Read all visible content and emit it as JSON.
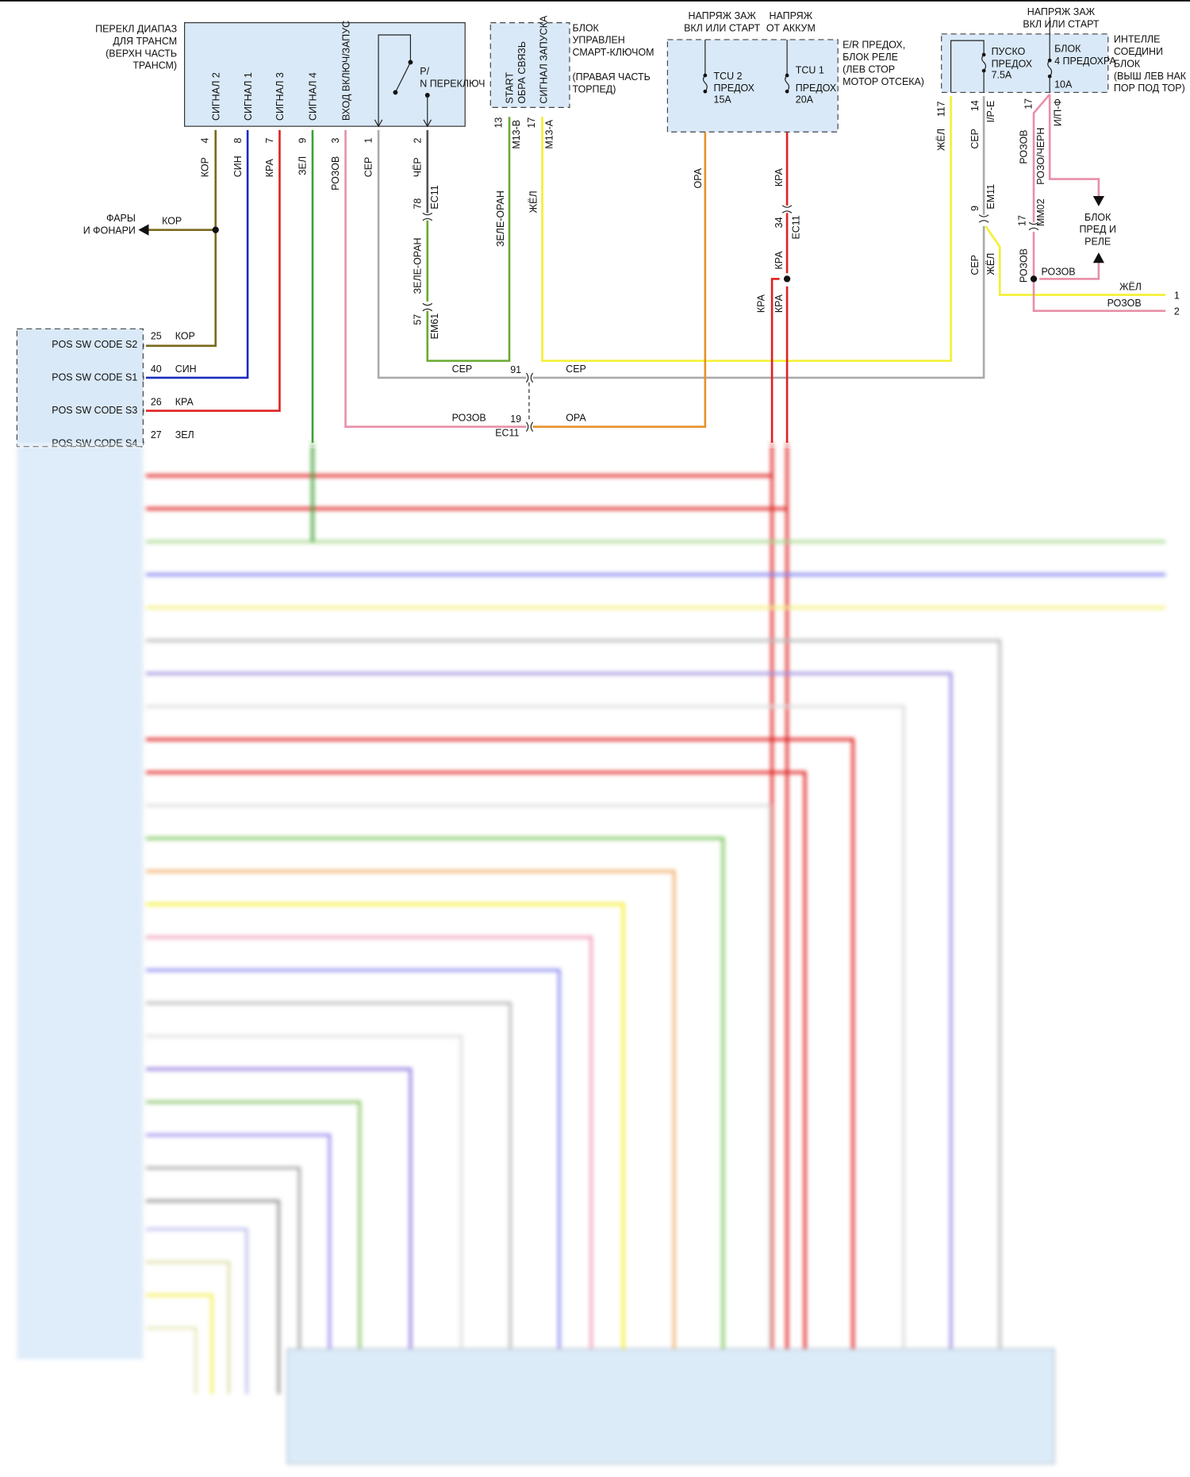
{
  "trans_range_switch": {
    "label": [
      "ПЕРЕКЛ ДИАПАЗ",
      "ДЛЯ ТРАНСМ",
      "(ВЕРХН ЧАСТЬ",
      "ТРАНСМ)"
    ],
    "signals": [
      "СИГНАЛ 2",
      "СИГНАЛ 1",
      "СИГНАЛ 3",
      "СИГНАЛ 4",
      "ВХОД ВКЛЮЧ/ЗАПУС"
    ],
    "pn_switch": [
      "P/",
      "N ПЕРЕКЛЮЧ"
    ],
    "pins": [
      "4",
      "8",
      "7",
      "9",
      "3",
      "1",
      "2"
    ],
    "wires": [
      "КОР",
      "СИН",
      "КРА",
      "ЗЕЛ",
      "РОЗОВ",
      "СЕР",
      "ЧЁР"
    ]
  },
  "headlamps": {
    "label": [
      "ФАРЫ",
      "И ФОНАРИ"
    ],
    "wire": "КОР"
  },
  "smart_key_unit": {
    "signals": [
      "START",
      "ОБРА СВЯЗЬ",
      "СИГНАЛ ЗАПУСКА"
    ],
    "label": [
      "БЛОК",
      "УПРАВЛЕН",
      "СМАРТ-КЛЮЧОМ",
      "(ПРАВАЯ ЧАСТЬ",
      "ТОРПЕД)"
    ],
    "pins": [
      {
        "num": "13",
        "conn": "M13-B",
        "wire": "ЗЕЛЕ-ОРАН"
      },
      {
        "num": "17",
        "conn": "M13-A",
        "wire": "ЖЁЛ"
      }
    ]
  },
  "er_fuse_box": {
    "supply_ign": [
      "НАПРЯЖ ЗАЖ",
      "ВКЛ ИЛИ СТАРТ"
    ],
    "supply_batt": [
      "НАПРЯЖ",
      "ОТ АККУМ"
    ],
    "fuse1": [
      "TCU 2",
      "ПРЕДОХ",
      "15A"
    ],
    "fuse2": [
      "TCU 1",
      "ПРЕДОХ",
      "20A"
    ],
    "label": [
      "E/R ПРЕДОХ,",
      "БЛОК РЕЛЕ",
      "(ЛЕВ СТОР",
      "МОТОР ОТСЕКА)"
    ],
    "wires": [
      "ОРА",
      "КРА",
      "КРА",
      "КРА",
      "КРА"
    ],
    "connector": {
      "num": "34",
      "name": "EC11"
    }
  },
  "smart_junction_block": {
    "supply": [
      "НАПРЯЖ ЗАЖ",
      "ВКЛ ИЛИ СТАРТ"
    ],
    "fuse1": [
      "ПУСКО",
      "ПРЕДОХ",
      "7.5A"
    ],
    "fuse2": [
      "БЛОК",
      "4 ПРЕДОХРА",
      "10A"
    ],
    "label": [
      "ИНТЕЛЛЕ",
      "СОЕДИНИ",
      "БЛОК",
      "(ВЫШ ЛЕВ НАК",
      "ПОР ПОД ТОР)"
    ],
    "pins": [
      {
        "num": "117",
        "wire": "ЖЁЛ"
      },
      {
        "num": "14",
        "conn": "I/P-E",
        "wire": "СЕР"
      },
      {
        "num": "17",
        "conn": "И/П-Ф",
        "wire": "РОЗОВ",
        "wire2": "РОЗО/ЧЕРН"
      }
    ],
    "em11": {
      "num": "9",
      "name": "EM11",
      "wire_a": "СЕР",
      "wire_b": "ЖЁЛ"
    },
    "mm02": {
      "num": "17",
      "name": "MM02",
      "wire": "РОЗОВ",
      "junction_wire": "РОЗОВ"
    }
  },
  "relay_box": {
    "label": [
      "БЛОК",
      "ПРЕД И",
      "РЕЛЕ"
    ]
  },
  "outputs": [
    {
      "num": "1",
      "wire": "ЖЁЛ"
    },
    {
      "num": "2",
      "wire": "РОЗОВ"
    }
  ],
  "connectors": {
    "ec11_78": {
      "num": "78",
      "name": "EC11",
      "wire": "ЗЕЛЕ-ОРАН"
    },
    "em61_57": {
      "num": "57",
      "name": "EM61"
    },
    "c91": {
      "num": "91",
      "wire_left": "СЕР",
      "wire_right": "СЕР"
    },
    "c19": {
      "num": "19",
      "name": "EC11",
      "wire_left": "РОЗОВ",
      "wire_right": "ОРА"
    }
  },
  "tcm": {
    "pins": [
      {
        "name": "POS SW CODE S2",
        "num": "25",
        "wire": "КОР"
      },
      {
        "name": "POS SW CODE S1",
        "num": "40",
        "wire": "СИН"
      },
      {
        "name": "POS SW CODE S3",
        "num": "26",
        "wire": "КРА"
      },
      {
        "name": "POS SW CODE S4",
        "num": "27",
        "wire": "ЗЕЛ"
      }
    ]
  },
  "colors": {
    "brown": "#7a6a1c",
    "blue": "#1a2cc0",
    "red": "#e02020",
    "green": "#3ca030",
    "pink": "#e890a8",
    "gray": "#aaaaaa",
    "black": "#555555",
    "green_orange": "#6aaa30",
    "yellow": "#f4f030",
    "orange": "#e8902a",
    "box_fill": "#d9e9f8"
  }
}
